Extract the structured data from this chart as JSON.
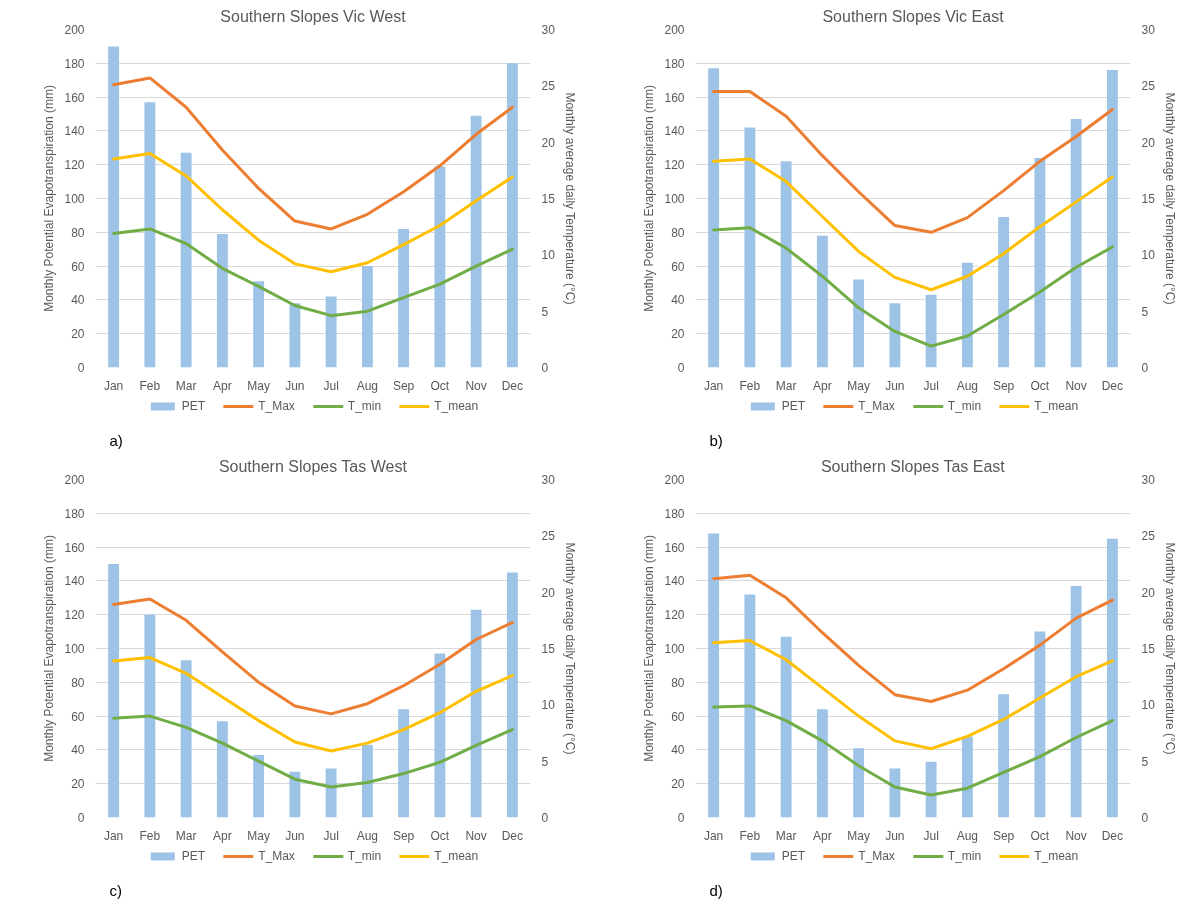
{
  "chart_data": [
    {
      "type": "bar",
      "title": "Southern Slopes Vic West",
      "ylabel": "Monthly Potential Evapotranspiration (mm)",
      "y2label": "Monthly average daily Temperature (°C)",
      "categories": [
        "Jan",
        "Feb",
        "Mar",
        "Apr",
        "May",
        "Jun",
        "Jul",
        "Aug",
        "Sep",
        "Oct",
        "Nov",
        "Dec"
      ],
      "series": [
        {
          "name": "PET",
          "color": "#9dc3e6",
          "values": [
            190,
            157,
            127,
            79,
            51,
            38,
            42,
            60,
            82,
            119,
            149,
            180
          ]
        },
        {
          "name": "T_Max",
          "type": "line",
          "axis": "y2",
          "color": "#ed7d31",
          "values": [
            25.1,
            25.7,
            23.1,
            19.3,
            15.9,
            13.0,
            12.3,
            13.6,
            15.6,
            17.9,
            20.7,
            23.1
          ]
        },
        {
          "name": "T_min",
          "type": "line",
          "axis": "y2",
          "color": "#70ad47",
          "values": [
            11.9,
            12.3,
            11.0,
            8.8,
            7.2,
            5.5,
            4.6,
            5.0,
            6.2,
            7.4,
            9.0,
            10.5
          ]
        },
        {
          "name": "T_mean",
          "type": "line",
          "axis": "y2",
          "color": "#ffc000",
          "values": [
            18.5,
            19.0,
            17.0,
            14.0,
            11.3,
            9.2,
            8.5,
            9.3,
            10.9,
            12.6,
            14.8,
            16.9
          ]
        }
      ],
      "ylim": [
        0,
        200
      ],
      "yticks": [
        0,
        20,
        40,
        60,
        80,
        100,
        120,
        140,
        160,
        180,
        200
      ],
      "y2lim": [
        0,
        30
      ],
      "y2ticks": [
        0,
        5,
        10,
        15,
        20,
        25,
        30
      ],
      "grid": "y",
      "legend": "bottom",
      "annotations": [
        "a)"
      ]
    },
    {
      "type": "bar",
      "title": "Southern Slopes Vic East",
      "ylabel": "Monthly Potential Evapotranspiration (mm)",
      "y2label": "Monthly average daily Temperature (°C)",
      "categories": [
        "Jan",
        "Feb",
        "Mar",
        "Apr",
        "May",
        "Jun",
        "Jul",
        "Aug",
        "Sep",
        "Oct",
        "Nov",
        "Dec"
      ],
      "series": [
        {
          "name": "PET",
          "color": "#9dc3e6",
          "values": [
            177,
            142,
            122,
            78,
            52,
            38,
            43,
            62,
            89,
            124,
            147,
            176
          ]
        },
        {
          "name": "T_Max",
          "type": "line",
          "axis": "y2",
          "color": "#ed7d31",
          "values": [
            24.5,
            24.5,
            22.3,
            18.8,
            15.6,
            12.6,
            12.0,
            13.3,
            15.7,
            18.3,
            20.5,
            22.9
          ]
        },
        {
          "name": "T_min",
          "type": "line",
          "axis": "y2",
          "color": "#70ad47",
          "values": [
            12.2,
            12.4,
            10.6,
            8.1,
            5.3,
            3.2,
            1.9,
            2.8,
            4.7,
            6.7,
            8.9,
            10.7
          ]
        },
        {
          "name": "T_mean",
          "type": "line",
          "axis": "y2",
          "color": "#ffc000",
          "values": [
            18.3,
            18.5,
            16.5,
            13.4,
            10.3,
            8.0,
            6.9,
            8.1,
            10.1,
            12.5,
            14.7,
            16.9
          ]
        }
      ],
      "ylim": [
        0,
        200
      ],
      "yticks": [
        0,
        20,
        40,
        60,
        80,
        100,
        120,
        140,
        160,
        180,
        200
      ],
      "y2lim": [
        0,
        30
      ],
      "y2ticks": [
        0,
        5,
        10,
        15,
        20,
        25,
        30
      ],
      "grid": "y",
      "legend": "bottom",
      "annotations": [
        "b)"
      ]
    },
    {
      "type": "bar",
      "title": "Southern Slopes Tas West",
      "ylabel": "Monthly Potential Evapotranspiration (mm)",
      "y2label": "Monthly average daily Temperature (°C)",
      "categories": [
        "Jan",
        "Feb",
        "Mar",
        "Apr",
        "May",
        "Jun",
        "Jul",
        "Aug",
        "Sep",
        "Oct",
        "Nov",
        "Dec"
      ],
      "series": [
        {
          "name": "PET",
          "color": "#9dc3e6",
          "values": [
            150,
            120,
            93,
            57,
            37,
            27,
            29,
            43,
            64,
            97,
            123,
            145
          ]
        },
        {
          "name": "T_Max",
          "type": "line",
          "axis": "y2",
          "color": "#ed7d31",
          "values": [
            18.9,
            19.4,
            17.5,
            14.7,
            12.0,
            9.9,
            9.2,
            10.1,
            11.7,
            13.6,
            15.8,
            17.3
          ]
        },
        {
          "name": "T_min",
          "type": "line",
          "axis": "y2",
          "color": "#70ad47",
          "values": [
            8.8,
            9.0,
            8.0,
            6.6,
            5.0,
            3.4,
            2.7,
            3.1,
            3.9,
            4.9,
            6.4,
            7.8
          ]
        },
        {
          "name": "T_mean",
          "type": "line",
          "axis": "y2",
          "color": "#ffc000",
          "values": [
            13.9,
            14.2,
            12.8,
            10.7,
            8.6,
            6.7,
            5.9,
            6.6,
            7.8,
            9.3,
            11.2,
            12.6
          ]
        }
      ],
      "ylim": [
        0,
        200
      ],
      "yticks": [
        0,
        20,
        40,
        60,
        80,
        100,
        120,
        140,
        160,
        180,
        200
      ],
      "y2lim": [
        0,
        30
      ],
      "y2ticks": [
        0,
        5,
        10,
        15,
        20,
        25,
        30
      ],
      "grid": "y",
      "legend": "bottom",
      "annotations": [
        "c)"
      ]
    },
    {
      "type": "bar",
      "title": "Southern Slopes Tas East",
      "ylabel": "Monthly Potential Evapotranspiration (mm)",
      "y2label": "Monthly average daily Temperature (°C)",
      "categories": [
        "Jan",
        "Feb",
        "Mar",
        "Apr",
        "May",
        "Jun",
        "Jul",
        "Aug",
        "Sep",
        "Oct",
        "Nov",
        "Dec"
      ],
      "series": [
        {
          "name": "PET",
          "color": "#9dc3e6",
          "values": [
            168,
            132,
            107,
            64,
            41,
            29,
            33,
            48,
            73,
            110,
            137,
            165
          ]
        },
        {
          "name": "T_Max",
          "type": "line",
          "axis": "y2",
          "color": "#ed7d31",
          "values": [
            21.2,
            21.5,
            19.5,
            16.4,
            13.5,
            10.9,
            10.3,
            11.3,
            13.2,
            15.3,
            17.7,
            19.3
          ]
        },
        {
          "name": "T_min",
          "type": "line",
          "axis": "y2",
          "color": "#70ad47",
          "values": [
            9.8,
            9.9,
            8.6,
            6.8,
            4.6,
            2.7,
            2.0,
            2.6,
            4.0,
            5.4,
            7.1,
            8.6
          ]
        },
        {
          "name": "T_mean",
          "type": "line",
          "axis": "y2",
          "color": "#ffc000",
          "values": [
            15.5,
            15.7,
            14.0,
            11.5,
            9.0,
            6.8,
            6.1,
            7.2,
            8.7,
            10.6,
            12.5,
            13.9
          ]
        }
      ],
      "ylim": [
        0,
        200
      ],
      "yticks": [
        0,
        20,
        40,
        60,
        80,
        100,
        120,
        140,
        160,
        180,
        200
      ],
      "y2lim": [
        0,
        30
      ],
      "y2ticks": [
        0,
        5,
        10,
        15,
        20,
        25,
        30
      ],
      "grid": "y",
      "legend": "bottom",
      "annotations": [
        "d)"
      ]
    }
  ]
}
